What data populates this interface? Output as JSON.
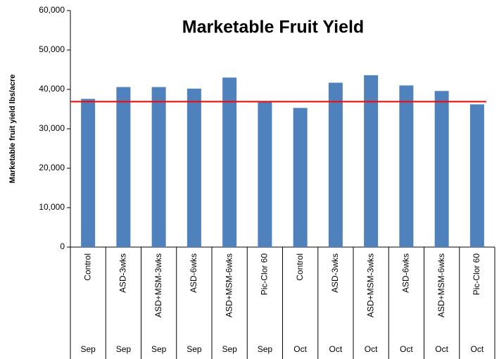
{
  "chart_data": {
    "type": "bar",
    "title": "Marketable Fruit Yield",
    "y_label": "Marketable fruit yield lbs/acre",
    "categories": [
      "Control",
      "ASD-3wks",
      "ASD+MSM-3wks",
      "ASD-6wks",
      "ASD+MSM-6wks",
      "Pic-Clor 60",
      "Control",
      "ASD-3wks",
      "ASD+MSM-3wks",
      "ASD-6wks",
      "ASD+MSM-6wks",
      "Pic-Clor 60"
    ],
    "months": [
      "Sep",
      "Sep",
      "Sep",
      "Sep",
      "Sep",
      "Sep",
      "Oct",
      "Oct",
      "Oct",
      "Oct",
      "Oct",
      "Oct"
    ],
    "values": [
      37600,
      40600,
      40600,
      40200,
      43000,
      36900,
      35300,
      41700,
      43600,
      41000,
      39600,
      36200
    ],
    "color": "#4f81bd",
    "reference_line": {
      "value": 36900,
      "color": "#ff0000"
    },
    "ylim": [
      0,
      60000
    ],
    "yticks": [
      0,
      {
        "value": 10000,
        "label": "10,000"
      },
      {
        "value": 20000,
        "label": "20,000"
      },
      {
        "value": 30000,
        "label": "30,000"
      },
      {
        "value": 40000,
        "label": "40,000"
      },
      {
        "value": 50000,
        "label": "50,000"
      },
      {
        "value": 60000,
        "label": "60,000"
      }
    ],
    "grid": false
  }
}
